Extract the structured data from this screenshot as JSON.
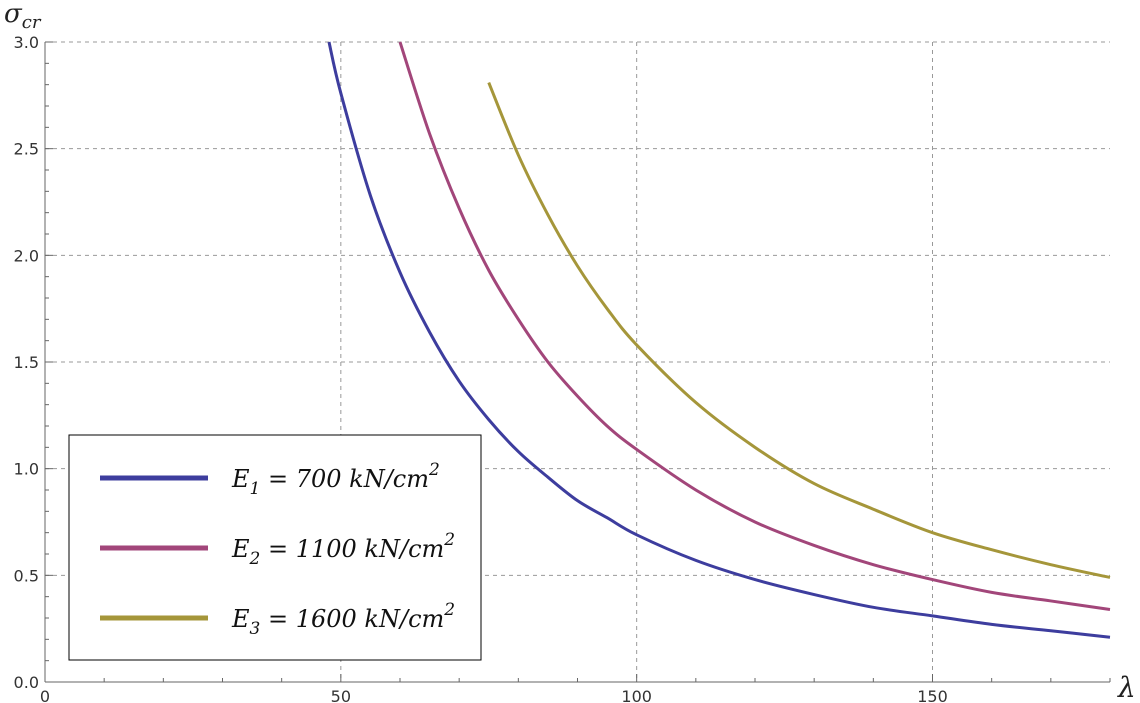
{
  "chart_data": {
    "type": "line",
    "xlabel": "λ",
    "ylabel_base": "σ",
    "ylabel_sub": "cr",
    "xlim": [
      0,
      180
    ],
    "ylim": [
      0,
      3
    ],
    "xticks": [
      0,
      50,
      100,
      150
    ],
    "yticks": [
      0.0,
      0.5,
      1.0,
      1.5,
      2.0,
      2.5,
      3.0
    ],
    "ytick_labels": [
      "0.0",
      "0.5",
      "1.0",
      "1.5",
      "2.0",
      "2.5",
      "3.0"
    ],
    "grid": true,
    "legend_position": "lower-left",
    "x": [
      48,
      50,
      55,
      60,
      65,
      70,
      75,
      80,
      85,
      90,
      95,
      100,
      110,
      120,
      130,
      140,
      150,
      160,
      170,
      180
    ],
    "series": [
      {
        "name_base": "E",
        "name_sub": "1",
        "name_rest": " = 700 kN/cm",
        "name_sup": "2",
        "color": "#3d3d9e",
        "values": [
          3.0,
          2.76,
          2.28,
          1.92,
          1.64,
          1.41,
          1.23,
          1.08,
          0.96,
          0.85,
          0.77,
          0.69,
          0.57,
          0.48,
          0.41,
          0.35,
          0.31,
          0.27,
          0.24,
          0.21
        ]
      },
      {
        "name_base": "E",
        "name_sub": "2",
        "name_rest": " = 1100 kN/cm",
        "name_sup": "2",
        "color": "#a2467a",
        "values": [
          null,
          null,
          null,
          3.0,
          2.57,
          2.22,
          1.93,
          1.7,
          1.5,
          1.34,
          1.2,
          1.09,
          0.9,
          0.75,
          0.64,
          0.55,
          0.48,
          0.42,
          0.38,
          0.34
        ]
      },
      {
        "name_base": "E",
        "name_sub": "3",
        "name_rest": " = 1600 kN/cm",
        "name_sup": "2",
        "color": "#a5963a",
        "values": [
          null,
          null,
          null,
          null,
          null,
          null,
          2.81,
          2.47,
          2.19,
          1.95,
          1.75,
          1.58,
          1.31,
          1.1,
          0.93,
          0.81,
          0.7,
          0.62,
          0.55,
          0.49
        ]
      }
    ]
  }
}
